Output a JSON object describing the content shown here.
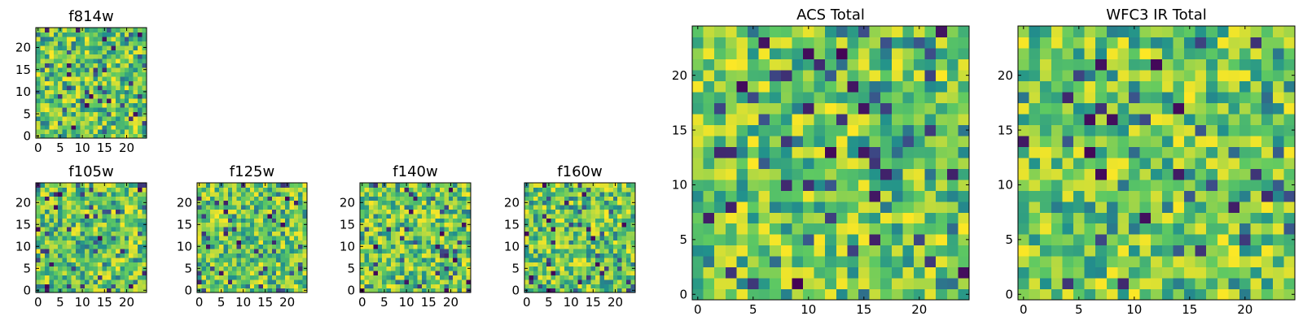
{
  "colormap": {
    "name": "viridis",
    "stops": [
      "#440154",
      "#3b528b",
      "#21918c",
      "#5ec962",
      "#fde725"
    ]
  },
  "chart_data": [
    {
      "type": "heatmap",
      "id": "f814w",
      "title": "f814w",
      "grid_size": 25,
      "xlim": [
        0,
        24
      ],
      "ylim": [
        0,
        24
      ],
      "xticks": [
        0,
        5,
        10,
        15,
        20
      ],
      "yticks": [
        0,
        5,
        10,
        15,
        20
      ],
      "value_range": [
        0,
        1
      ],
      "pattern_seed": 11
    },
    {
      "type": "heatmap",
      "id": "f105w",
      "title": "f105w",
      "grid_size": 25,
      "xlim": [
        0,
        24
      ],
      "ylim": [
        0,
        24
      ],
      "xticks": [
        0,
        5,
        10,
        15,
        20
      ],
      "yticks": [
        0,
        5,
        10,
        15,
        20
      ],
      "value_range": [
        0,
        1
      ],
      "pattern_seed": 23
    },
    {
      "type": "heatmap",
      "id": "f125w",
      "title": "f125w",
      "grid_size": 25,
      "xlim": [
        0,
        24
      ],
      "ylim": [
        0,
        24
      ],
      "xticks": [
        0,
        5,
        10,
        15,
        20
      ],
      "yticks": [
        0,
        5,
        10,
        15,
        20
      ],
      "value_range": [
        0,
        1
      ],
      "pattern_seed": 37
    },
    {
      "type": "heatmap",
      "id": "f140w",
      "title": "f140w",
      "grid_size": 25,
      "xlim": [
        0,
        24
      ],
      "ylim": [
        0,
        24
      ],
      "xticks": [
        0,
        5,
        10,
        15,
        20
      ],
      "yticks": [
        0,
        5,
        10,
        15,
        20
      ],
      "value_range": [
        0,
        1
      ],
      "pattern_seed": 41
    },
    {
      "type": "heatmap",
      "id": "f160w",
      "title": "f160w",
      "grid_size": 25,
      "xlim": [
        0,
        24
      ],
      "ylim": [
        0,
        24
      ],
      "xticks": [
        0,
        5,
        10,
        15,
        20
      ],
      "yticks": [
        0,
        5,
        10,
        15,
        20
      ],
      "value_range": [
        0,
        1
      ],
      "pattern_seed": 53
    },
    {
      "type": "heatmap",
      "id": "acs-total",
      "title": "ACS Total",
      "grid_size": 25,
      "xlim": [
        0,
        24
      ],
      "ylim": [
        0,
        24
      ],
      "xticks": [
        0,
        5,
        10,
        15,
        20
      ],
      "yticks": [
        0,
        5,
        10,
        15,
        20
      ],
      "value_range": [
        0,
        1
      ],
      "pattern_seed": 67
    },
    {
      "type": "heatmap",
      "id": "wfc3-ir-total",
      "title": "WFC3 IR Total",
      "grid_size": 25,
      "xlim": [
        0,
        24
      ],
      "ylim": [
        0,
        24
      ],
      "xticks": [
        0,
        5,
        10,
        15,
        20
      ],
      "yticks": [
        0,
        5,
        10,
        15,
        20
      ],
      "value_range": [
        0,
        1
      ],
      "pattern_seed": 79
    }
  ]
}
